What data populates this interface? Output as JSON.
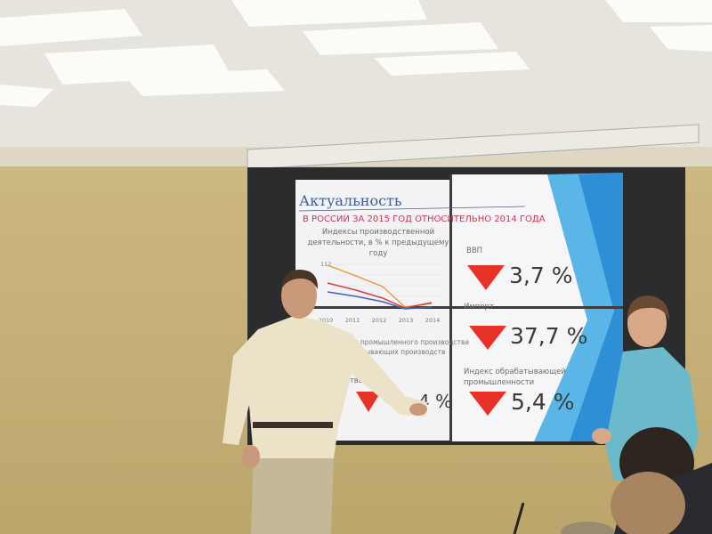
{
  "slide": {
    "title": "Актуальность",
    "subtitle": "В РОССИИ ЗА 2015 ГОД ОТНОСИТЕЛЬНО 2014 ГОДА",
    "chart": {
      "title_lines": [
        "Индексы производственной",
        "деятельности, в % к предыдущему",
        "году"
      ],
      "y_tick": "112",
      "years": [
        "2010",
        "2011",
        "2012",
        "2013",
        "2014"
      ]
    },
    "partial_text": [
      "декс промышленного производства",
      "обрабатывающих производств",
      "водства",
      "4 %"
    ],
    "indicators": [
      {
        "label_lines": [
          "ВВП"
        ],
        "value": "3,7 %"
      },
      {
        "label_lines": [
          "Импорт"
        ],
        "value": "37,7 %"
      },
      {
        "label_lines": [
          "Индекс обрабатывающей",
          "промышленности"
        ],
        "value": "5,4 %"
      }
    ]
  }
}
